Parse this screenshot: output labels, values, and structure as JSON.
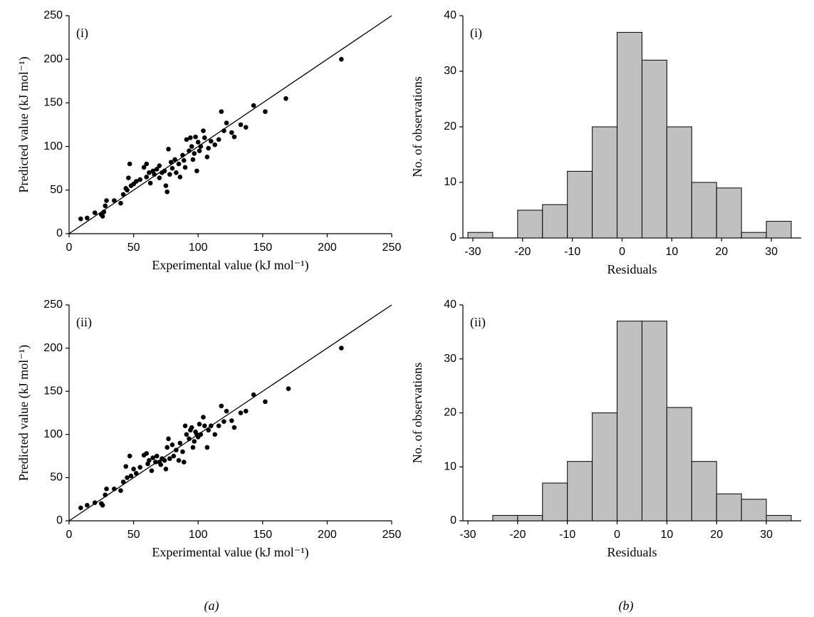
{
  "chart_data": [
    {
      "type": "scatter",
      "label": "(i)",
      "xlabel": "Experimental value (kJ mol⁻¹)",
      "ylabel": "Predicted value (kJ mol⁻¹)",
      "color": "#000000",
      "x": [
        9,
        14,
        20,
        25,
        26,
        27,
        28,
        29,
        35,
        40,
        42,
        44,
        45,
        46,
        47,
        48,
        50,
        52,
        55,
        58,
        60,
        60,
        62,
        63,
        65,
        66,
        68,
        70,
        70,
        72,
        74,
        75,
        76,
        77,
        78,
        79,
        80,
        82,
        83,
        85,
        86,
        88,
        89,
        90,
        91,
        93,
        94,
        95,
        96,
        97,
        98,
        99,
        100,
        101,
        102,
        104,
        105,
        107,
        108,
        110,
        113,
        116,
        118,
        120,
        122,
        126,
        128,
        133,
        137,
        143,
        152,
        168,
        211
      ],
      "y": [
        17,
        18,
        24,
        22,
        20,
        25,
        32,
        38,
        38,
        35,
        45,
        52,
        50,
        64,
        80,
        55,
        57,
        60,
        62,
        76,
        80,
        65,
        70,
        58,
        72,
        68,
        74,
        64,
        78,
        70,
        72,
        55,
        48,
        97,
        68,
        82,
        75,
        85,
        70,
        80,
        65,
        90,
        84,
        76,
        108,
        95,
        110,
        100,
        85,
        92,
        111,
        72,
        105,
        95,
        100,
        118,
        110,
        88,
        98,
        106,
        102,
        108,
        140,
        118,
        127,
        116,
        111,
        125,
        122,
        147,
        140,
        155,
        200
      ],
      "xlim": [
        0,
        250
      ],
      "ylim": [
        0,
        250
      ],
      "xticks": [
        0,
        50,
        100,
        150,
        200,
        250
      ],
      "yticks": [
        0,
        50,
        100,
        150,
        200,
        250
      ]
    },
    {
      "type": "histogram",
      "label": "(i)",
      "xlabel": "Residuals",
      "ylabel": "No. of observations",
      "color": "#c0c0c0",
      "bins": [
        -31,
        -26,
        -21,
        -16,
        -11,
        -6,
        -1,
        4,
        9,
        14,
        19,
        24,
        29,
        34
      ],
      "values": [
        1,
        0,
        5,
        6,
        12,
        20,
        37,
        32,
        20,
        10,
        9,
        1,
        3
      ],
      "xlim": [
        -32,
        36
      ],
      "ylim": [
        0,
        40
      ],
      "xticks": [
        -30,
        -20,
        -10,
        0,
        10,
        20,
        30
      ],
      "yticks": [
        0,
        10,
        20,
        30,
        40
      ]
    },
    {
      "type": "scatter",
      "label": "(ii)",
      "xlabel": "Experimental value (kJ mol⁻¹)",
      "ylabel": "Predicted value (kJ mol⁻¹)",
      "color": "#000000",
      "x": [
        9,
        14,
        20,
        25,
        26,
        28,
        29,
        35,
        40,
        42,
        44,
        45,
        47,
        48,
        50,
        52,
        55,
        58,
        60,
        61,
        62,
        64,
        65,
        67,
        68,
        70,
        71,
        72,
        74,
        75,
        76,
        77,
        78,
        80,
        81,
        83,
        85,
        86,
        88,
        89,
        90,
        91,
        93,
        94,
        95,
        96,
        97,
        98,
        99,
        100,
        101,
        102,
        104,
        105,
        107,
        108,
        110,
        113,
        116,
        118,
        120,
        122,
        126,
        128,
        133,
        137,
        143,
        152,
        170,
        211
      ],
      "y": [
        15,
        18,
        21,
        20,
        18,
        30,
        37,
        37,
        35,
        45,
        63,
        50,
        75,
        52,
        60,
        55,
        62,
        76,
        78,
        66,
        70,
        58,
        73,
        68,
        75,
        68,
        65,
        72,
        70,
        60,
        85,
        95,
        72,
        88,
        75,
        82,
        70,
        90,
        80,
        68,
        110,
        100,
        95,
        105,
        108,
        85,
        92,
        103,
        100,
        97,
        112,
        100,
        120,
        110,
        85,
        105,
        110,
        100,
        110,
        133,
        115,
        127,
        116,
        108,
        125,
        127,
        146,
        138,
        153,
        200
      ],
      "xlim": [
        0,
        250
      ],
      "ylim": [
        0,
        250
      ],
      "xticks": [
        0,
        50,
        100,
        150,
        200,
        250
      ],
      "yticks": [
        0,
        50,
        100,
        150,
        200,
        250
      ]
    },
    {
      "type": "histogram",
      "label": "(ii)",
      "xlabel": "Residuals",
      "ylabel": "No. of observations",
      "color": "#c0c0c0",
      "bins": [
        -25,
        -20,
        -15,
        -10,
        -5,
        0,
        5,
        10,
        15,
        20,
        25,
        30,
        35
      ],
      "values": [
        1,
        1,
        7,
        11,
        20,
        37,
        37,
        21,
        11,
        5,
        4,
        1
      ],
      "xlim": [
        -31,
        37
      ],
      "ylim": [
        0,
        40
      ],
      "xticks": [
        -30,
        -20,
        -10,
        0,
        10,
        20,
        30
      ],
      "yticks": [
        0,
        10,
        20,
        30,
        40
      ]
    }
  ],
  "figure_labels": [
    "(a)",
    "(b)"
  ]
}
